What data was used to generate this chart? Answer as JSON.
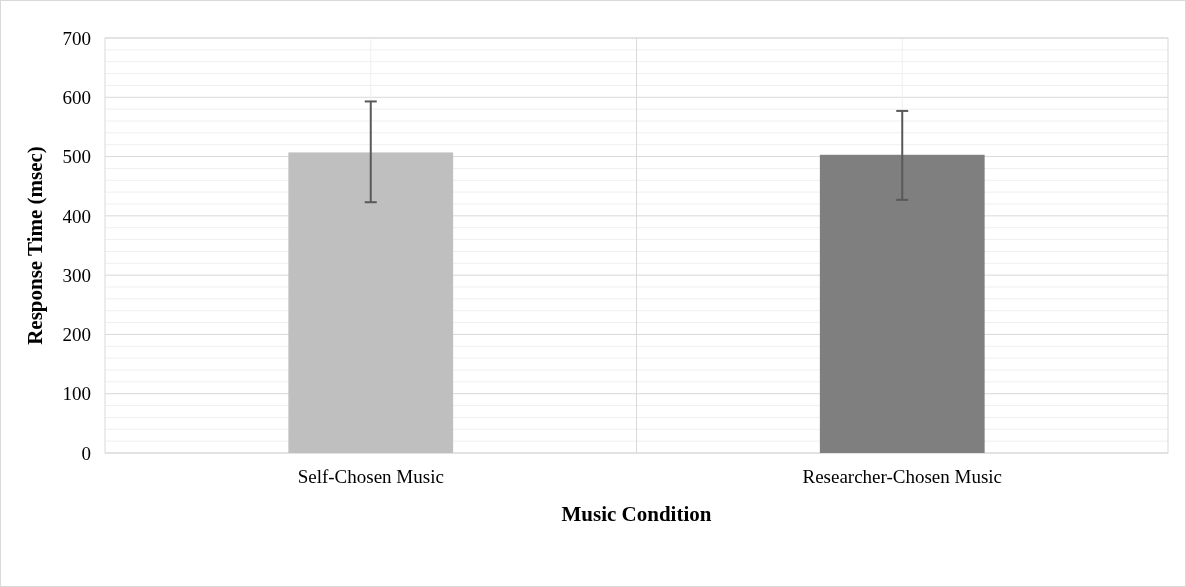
{
  "chart_data": {
    "type": "bar",
    "xlabel": "Music Condition",
    "ylabel": "Response Time (msec)",
    "categories": [
      "Self-Chosen Music",
      "Researcher-Chosen Music"
    ],
    "values": [
      507,
      503
    ],
    "colors": [
      "#bfbfbf",
      "#7f7f7f"
    ],
    "errors": [
      [
        423,
        593
      ],
      [
        427,
        577
      ]
    ],
    "ylim": [
      0,
      700
    ],
    "yticks": [
      0,
      {
        "value": 20,
        "label": null
      },
      {
        "value": 40,
        "label": null
      },
      {
        "value": 60,
        "label": null
      },
      {
        "value": 80,
        "label": null
      },
      100,
      {
        "value": 120,
        "label": null
      },
      {
        "value": 140,
        "label": null
      },
      {
        "value": 160,
        "label": null
      },
      {
        "value": 180,
        "label": null
      },
      200,
      {
        "value": 220,
        "label": null
      },
      {
        "value": 240,
        "label": null
      },
      {
        "value": 260,
        "label": null
      },
      {
        "value": 280,
        "label": null
      },
      300,
      {
        "value": 320,
        "label": null
      },
      {
        "value": 340,
        "label": null
      },
      {
        "value": 360,
        "label": null
      },
      {
        "value": 380,
        "label": null
      },
      400,
      {
        "value": 420,
        "label": null
      },
      {
        "value": 440,
        "label": null
      },
      {
        "value": 460,
        "label": null
      },
      {
        "value": 480,
        "label": null
      },
      500,
      {
        "value": 520,
        "label": null
      },
      {
        "value": 540,
        "label": null
      },
      {
        "value": 560,
        "label": null
      },
      {
        "value": 580,
        "label": null
      },
      600,
      {
        "value": 620,
        "label": null
      },
      {
        "value": 640,
        "label": null
      },
      {
        "value": 660,
        "label": null
      },
      {
        "value": 680,
        "label": null
      },
      700
    ],
    "grid": true
  }
}
